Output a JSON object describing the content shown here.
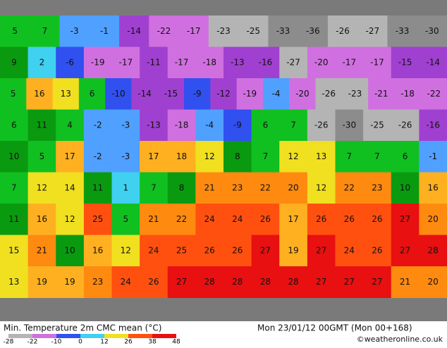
{
  "map": {
    "rows": [
      [
        5,
        7,
        -3,
        -1,
        -14,
        -22,
        -17,
        -23,
        -25,
        -33,
        -36,
        -26,
        -27,
        -33,
        -30
      ],
      [
        9,
        2,
        -6,
        -19,
        -17,
        -11,
        -17,
        -18,
        -13,
        -16,
        -27,
        -20,
        -17,
        -17,
        -15,
        -14
      ],
      [
        5,
        16,
        13,
        6,
        -10,
        -14,
        -15,
        -9,
        -12,
        -19,
        -4,
        -20,
        -26,
        -23,
        -21,
        -18,
        -22
      ],
      [
        6,
        11,
        4,
        -2,
        -3,
        -13,
        -18,
        -4,
        -9,
        6,
        7,
        -26,
        -30,
        -25,
        -26,
        -16
      ],
      [
        10,
        5,
        17,
        -2,
        -3,
        17,
        18,
        12,
        8,
        7,
        12,
        13,
        7,
        7,
        6,
        -1
      ],
      [
        7,
        12,
        14,
        11,
        1,
        7,
        8,
        21,
        23,
        22,
        20,
        12,
        22,
        23,
        10,
        16
      ],
      [
        11,
        16,
        12,
        25,
        5,
        21,
        22,
        24,
        24,
        26,
        17,
        26,
        26,
        26,
        27,
        20
      ],
      [
        15,
        21,
        10,
        16,
        12,
        24,
        25,
        26,
        26,
        27,
        19,
        27,
        24,
        26,
        27,
        28
      ],
      [
        13,
        19,
        19,
        23,
        24,
        26,
        27,
        28,
        28,
        28,
        28,
        27,
        27,
        27,
        21,
        20
      ]
    ]
  },
  "footer": {
    "title": "Min. Temperature 2m CMC mean (°C)",
    "date": "Mon 23/01/12 00GMT (Mon 00+168)",
    "credit": "©weatheronline.co.uk",
    "scale": [
      -28,
      -22,
      -10,
      0,
      12,
      26,
      38,
      48
    ]
  }
}
